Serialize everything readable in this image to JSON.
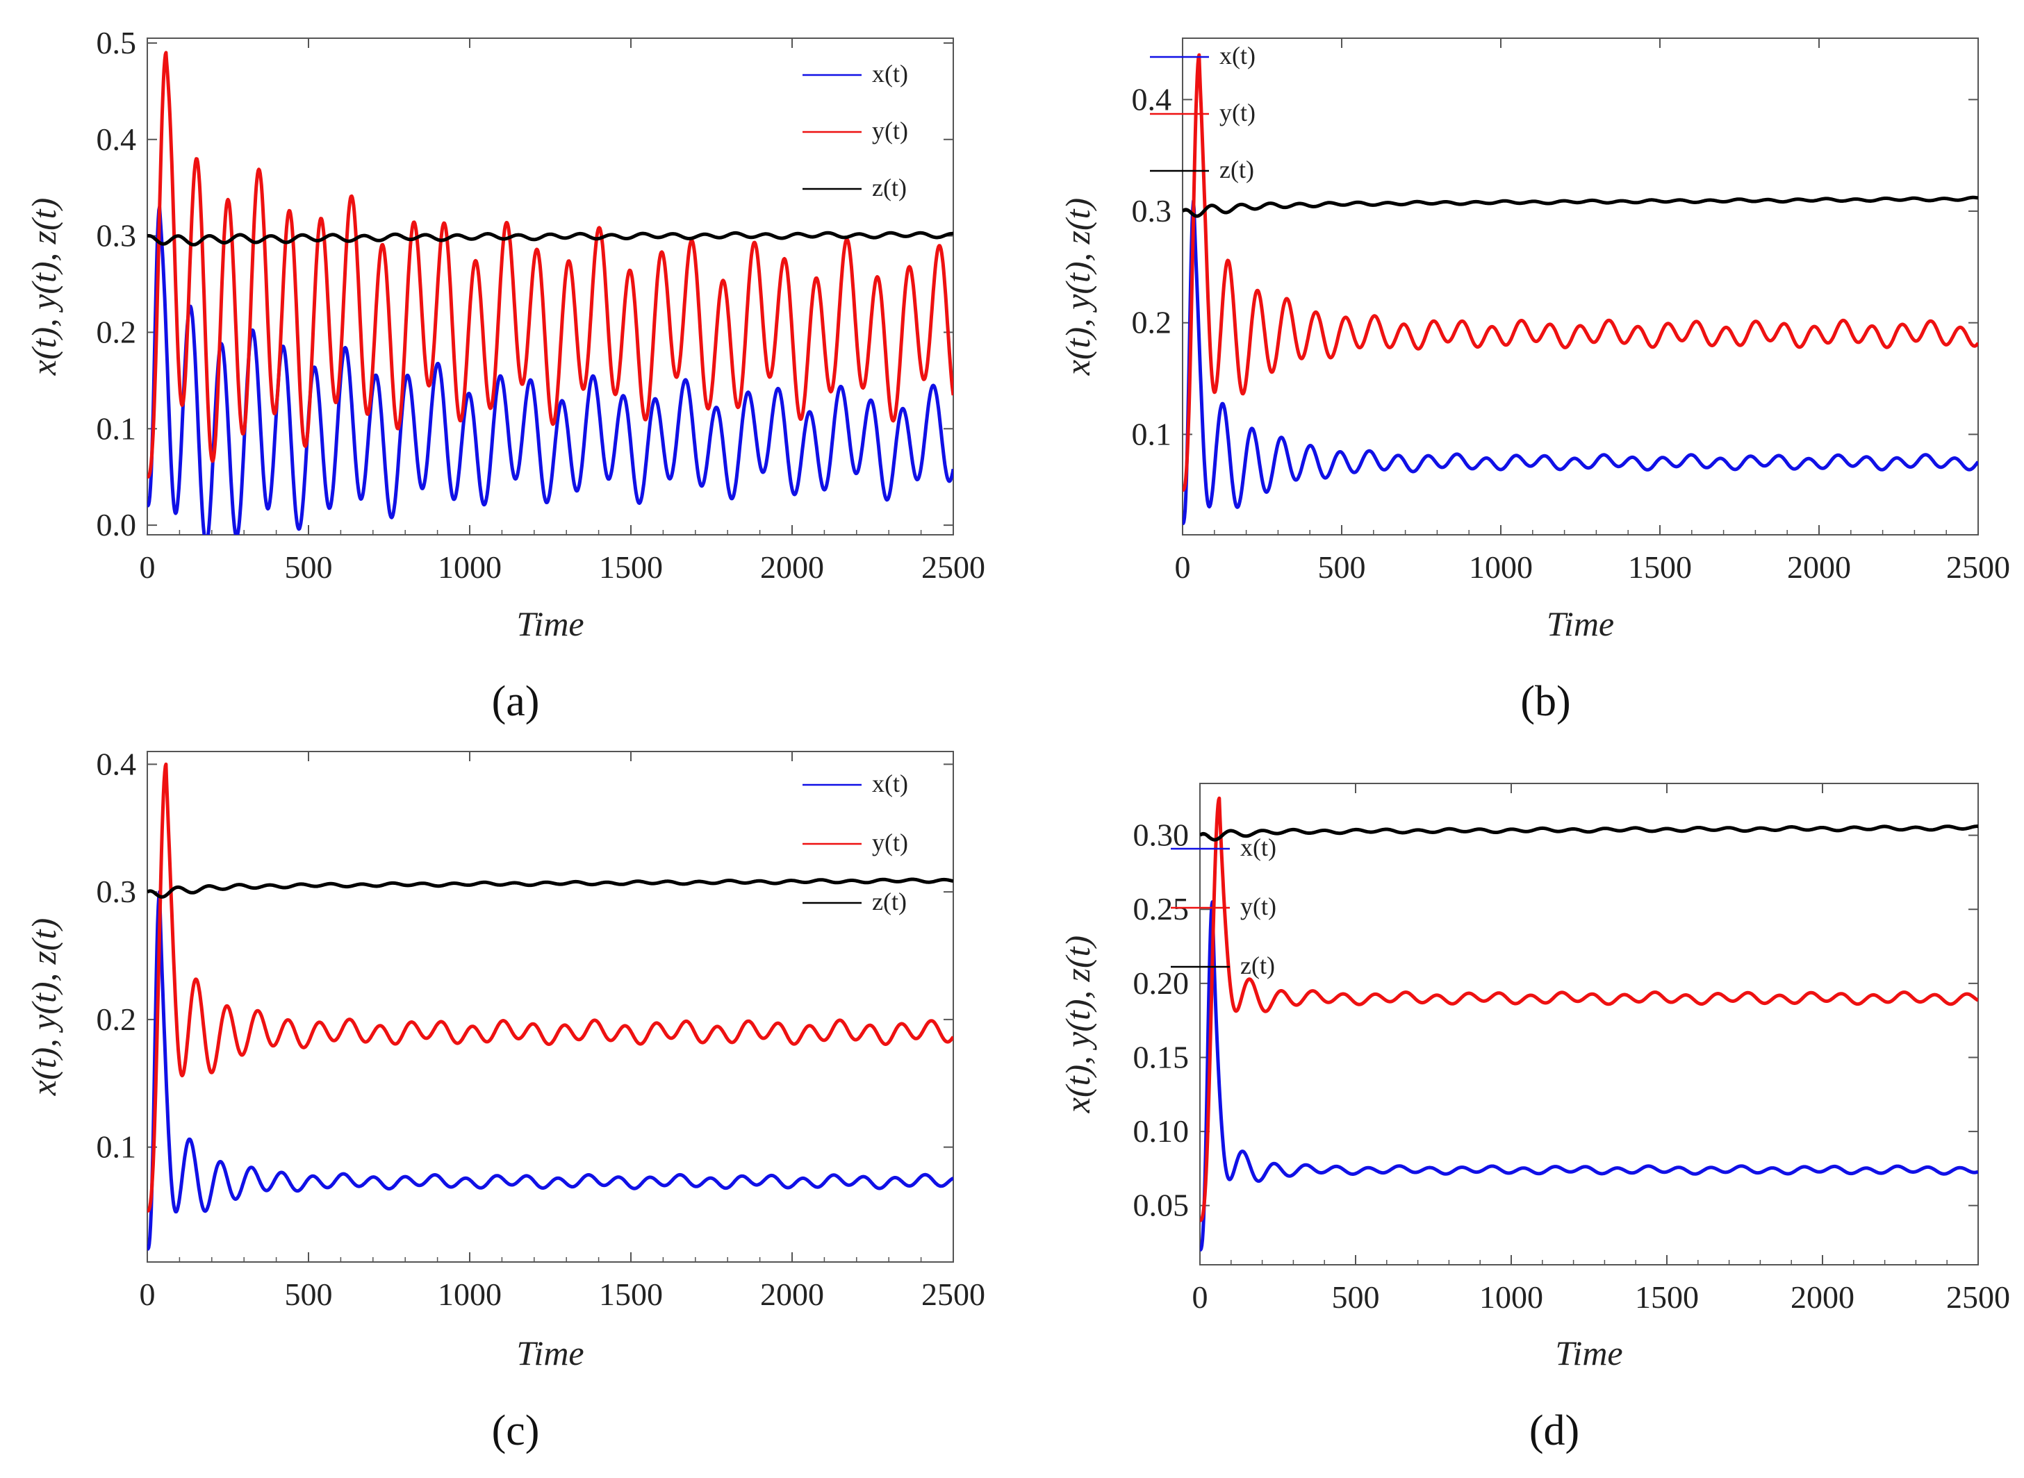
{
  "figure": {
    "title": ""
  },
  "colors": {
    "x": "#1010e6",
    "y": "#ee1111",
    "z": "#000000",
    "frame": "#555555"
  },
  "chart_data": [
    {
      "type": "line",
      "panel_label": "(a)",
      "xlabel": "Time",
      "ylabel": "x(t), y(t), z(t)",
      "xlim": [
        0,
        2500
      ],
      "ylim": [
        -0.01,
        0.505
      ],
      "xticks": [
        "0",
        "500",
        "1000",
        "1500",
        "2000",
        "2500"
      ],
      "yticks": [
        "0.0",
        "0.1",
        "0.2",
        "0.3",
        "0.4",
        "0.5"
      ],
      "legend_position": "top-right",
      "series": [
        {
          "name": "x(t)",
          "color_key": "x",
          "initial": 0.02,
          "first_peak": 0.33,
          "first_peak_time": 38,
          "center_start": 0.1,
          "center_end": 0.085,
          "amp_start": 0.13,
          "amp_end": 0.043,
          "period": 96,
          "decay": 600,
          "phase": 0
        },
        {
          "name": "y(t)",
          "color_key": "y",
          "initial": 0.05,
          "first_peak": 0.49,
          "first_peak_time": 58,
          "center_start": 0.23,
          "center_end": 0.2,
          "amp_start": 0.16,
          "amp_end": 0.068,
          "period": 96,
          "decay": 600,
          "phase": 0.55
        },
        {
          "name": "z(t)",
          "color_key": "z",
          "initial": 0.3,
          "first_peak": 0.3,
          "first_peak_time": 0,
          "center_start": 0.295,
          "center_end": 0.301,
          "amp_start": 0.005,
          "amp_end": 0.002,
          "period": 96,
          "decay": 600,
          "phase": 1.2
        }
      ]
    },
    {
      "type": "line",
      "panel_label": "(b)",
      "xlabel": "Time",
      "ylabel": "x(t), y(t), z(t)",
      "xlim": [
        0,
        2500
      ],
      "ylim": [
        0.01,
        0.455
      ],
      "xticks": [
        "0",
        "500",
        "1000",
        "1500",
        "2000",
        "2500"
      ],
      "yticks": [
        "0.1",
        "0.2",
        "0.3",
        "0.4"
      ],
      "legend_position": "top-right",
      "series": [
        {
          "name": "x(t)",
          "color_key": "x",
          "initial": 0.02,
          "first_peak": 0.31,
          "first_peak_time": 35,
          "center_start": 0.075,
          "center_end": 0.075,
          "amp_start": 0.08,
          "amp_end": 0.005,
          "period": 92,
          "decay": 180,
          "phase": 0
        },
        {
          "name": "y(t)",
          "color_key": "y",
          "initial": 0.05,
          "first_peak": 0.44,
          "first_peak_time": 52,
          "center_start": 0.19,
          "center_end": 0.19,
          "amp_start": 0.1,
          "amp_end": 0.009,
          "period": 92,
          "decay": 180,
          "phase": 0.55
        },
        {
          "name": "z(t)",
          "color_key": "z",
          "initial": 0.3,
          "first_peak": 0.3,
          "first_peak_time": 0,
          "center_start": 0.298,
          "center_end": 0.311,
          "amp_start": 0.006,
          "amp_end": 0.001,
          "period": 92,
          "decay": 180,
          "phase": 1.2
        }
      ]
    },
    {
      "type": "line",
      "panel_label": "(c)",
      "xlabel": "Time",
      "ylabel": "x(t), y(t), z(t)",
      "xlim": [
        0,
        2500
      ],
      "ylim": [
        0.01,
        0.41
      ],
      "xticks": [
        "0",
        "500",
        "1000",
        "1500",
        "2000",
        "2500"
      ],
      "yticks": [
        "0.1",
        "0.2",
        "0.3",
        "0.4"
      ],
      "legend_position": "top-right",
      "series": [
        {
          "name": "x(t)",
          "color_key": "x",
          "initial": 0.02,
          "first_peak": 0.3,
          "first_peak_time": 38,
          "center_start": 0.073,
          "center_end": 0.073,
          "amp_start": 0.06,
          "amp_end": 0.004,
          "period": 95,
          "decay": 130,
          "phase": 0
        },
        {
          "name": "y(t)",
          "color_key": "y",
          "initial": 0.05,
          "first_peak": 0.4,
          "first_peak_time": 58,
          "center_start": 0.19,
          "center_end": 0.19,
          "amp_start": 0.075,
          "amp_end": 0.007,
          "period": 95,
          "decay": 130,
          "phase": 0.55
        },
        {
          "name": "z(t)",
          "color_key": "z",
          "initial": 0.3,
          "first_peak": 0.3,
          "first_peak_time": 0,
          "center_start": 0.297,
          "center_end": 0.309,
          "amp_start": 0.005,
          "amp_end": 0.001,
          "period": 95,
          "decay": 130,
          "phase": 1.2
        }
      ]
    },
    {
      "type": "line",
      "panel_label": "(d)",
      "xlabel": "Time",
      "ylabel": "x(t), y(t), z(t)",
      "xlim": [
        0,
        2500
      ],
      "ylim": [
        0.01,
        0.335
      ],
      "xticks": [
        "0",
        "500",
        "1000",
        "1500",
        "2000",
        "2500"
      ],
      "yticks": [
        "0.05",
        "0.10",
        "0.15",
        "0.20",
        "0.25",
        "0.30"
      ],
      "legend_position": "right",
      "series": [
        {
          "name": "x(t)",
          "color_key": "x",
          "initial": 0.02,
          "first_peak": 0.255,
          "first_peak_time": 40,
          "center_start": 0.074,
          "center_end": 0.074,
          "amp_start": 0.03,
          "amp_end": 0.002,
          "period": 100,
          "decay": 90,
          "phase": 0
        },
        {
          "name": "y(t)",
          "color_key": "y",
          "initial": 0.04,
          "first_peak": 0.325,
          "first_peak_time": 62,
          "center_start": 0.19,
          "center_end": 0.19,
          "amp_start": 0.03,
          "amp_end": 0.003,
          "period": 100,
          "decay": 90,
          "phase": 0.55
        },
        {
          "name": "z(t)",
          "color_key": "z",
          "initial": 0.3,
          "first_peak": 0.3,
          "first_peak_time": 0,
          "center_start": 0.298,
          "center_end": 0.305,
          "amp_start": 0.005,
          "amp_end": 0.001,
          "period": 100,
          "decay": 90,
          "phase": 1.2
        }
      ]
    }
  ]
}
